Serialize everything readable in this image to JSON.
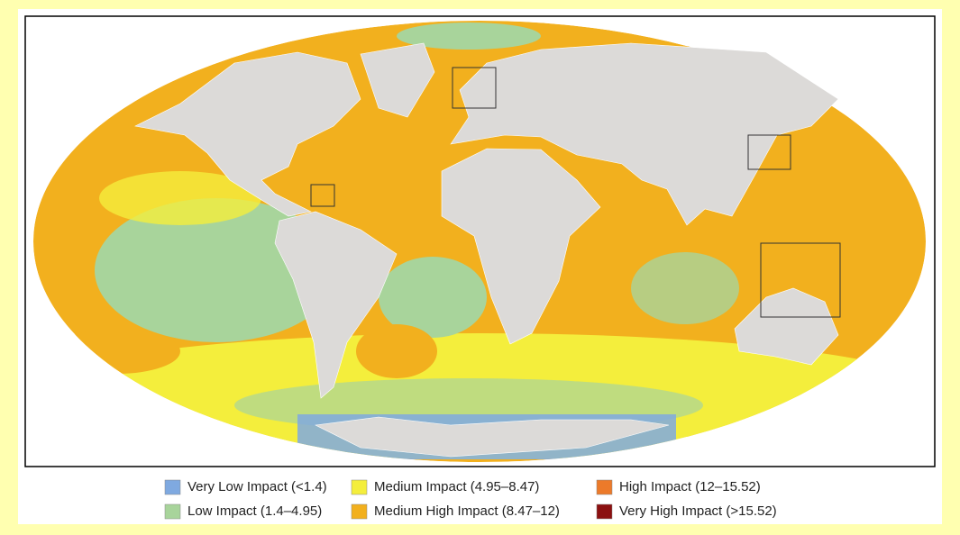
{
  "legend": {
    "items": [
      {
        "label": "Very Low Impact (<1.4)",
        "color": "#7fa9e0"
      },
      {
        "label": "Medium Impact (4.95–8.47)",
        "color": "#f4ee3c"
      },
      {
        "label": "High Impact (12–15.52)",
        "color": "#ec7a2a"
      },
      {
        "label": "Low Impact (1.4–4.95)",
        "color": "#a8d49b"
      },
      {
        "label": "Medium High Impact (8.47–12)",
        "color": "#f2b01e"
      },
      {
        "label": "Very High Impact (>15.52)",
        "color": "#8b1010"
      }
    ]
  }
}
